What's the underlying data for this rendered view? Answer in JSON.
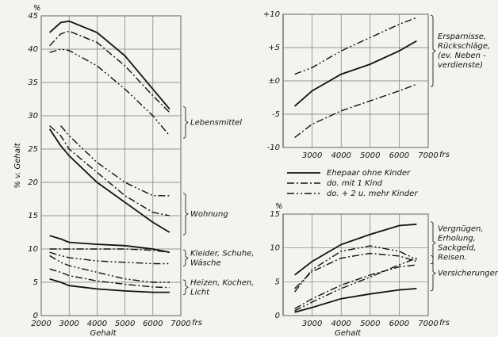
{
  "legend": [
    "Ehepaar ohne Kinder",
    "do. mit 1 Kind",
    "do. + 2 u. mehr Kinder"
  ],
  "chart_data": [
    {
      "type": "line",
      "x_label": "Gehalt",
      "y_label": "% v. Gehalt",
      "y_unit": "%",
      "x_unit": "frs",
      "grid": true,
      "color": "#111111",
      "xlim": [
        2000,
        7000
      ],
      "ylim": [
        0,
        45
      ],
      "xticks": [
        2000,
        3000,
        4000,
        5000,
        6000,
        7000
      ],
      "yticks": [
        0,
        5,
        10,
        15,
        20,
        25,
        30,
        35,
        40,
        45
      ],
      "x": [
        2300,
        2700,
        3000,
        4000,
        5000,
        6000,
        6600
      ],
      "groups": [
        {
          "label": [
            "Lebensmittel"
          ],
          "lines": [
            {
              "values": [
                42.5,
                44,
                44.2,
                42.5,
                39,
                34,
                31
              ]
            },
            {
              "values": [
                40.5,
                42.3,
                42.7,
                41,
                37.5,
                33,
                30.5
              ]
            },
            {
              "values": [
                39.5,
                40,
                39.8,
                37.5,
                34,
                30,
                27
              ]
            }
          ]
        },
        {
          "label": [
            "Wohnung"
          ],
          "lines": [
            {
              "values": [
                28,
                25.5,
                24,
                20,
                17,
                14,
                12.5
              ]
            },
            {
              "values": [
                28.5,
                27,
                25,
                21.5,
                18,
                15.5,
                15
              ]
            },
            {
              "values": [
                null,
                28.5,
                27,
                23,
                20,
                18,
                18
              ]
            }
          ]
        },
        {
          "label": [
            "Kleider, Schuhe,",
            "Wäsche"
          ],
          "lines": [
            {
              "values": [
                12,
                11.5,
                11,
                10.7,
                10.5,
                10,
                9.5
              ]
            },
            {
              "values": [
                10,
                10,
                10,
                10,
                10,
                9.8,
                9.5
              ]
            },
            {
              "values": [
                9.5,
                9,
                8.7,
                8.2,
                8,
                7.8,
                7.8
              ]
            }
          ]
        },
        {
          "label": [
            "Heizen, Kochen,",
            "Licht"
          ],
          "lines": [
            {
              "values": [
                5.5,
                5,
                4.5,
                4,
                3.7,
                3.5,
                3.5
              ]
            },
            {
              "values": [
                7,
                6.5,
                6,
                5.2,
                4.7,
                4.3,
                4.2
              ]
            },
            {
              "values": [
                9,
                8,
                7.5,
                6.5,
                5.5,
                5,
                5
              ]
            }
          ]
        }
      ]
    },
    {
      "type": "line",
      "grid": true,
      "color": "#111111",
      "x_unit": "frs",
      "xlim": [
        2000,
        7000
      ],
      "ylim": [
        -10,
        10
      ],
      "xticks": [
        3000,
        4000,
        5000,
        6000,
        7000
      ],
      "yticks": [
        {
          "value": -10,
          "label": "-10"
        },
        {
          "value": -5,
          "label": "-5"
        },
        {
          "value": 0,
          "label": "±0"
        },
        {
          "value": 5,
          "label": "+5"
        },
        {
          "value": 10,
          "label": "+10"
        }
      ],
      "x": [
        2400,
        3000,
        4000,
        5000,
        6000,
        6600
      ],
      "groups": [
        {
          "label": [
            "Ersparnisse,",
            "Rückschläge,",
            "(ev. Neben -",
            "verdienste)"
          ],
          "lines": [
            {
              "values": [
                -3.8,
                -1.5,
                1,
                2.5,
                4.5,
                6
              ]
            },
            {
              "values": [
                -8.5,
                -6.5,
                -4.5,
                -3,
                -1.5,
                -0.5
              ]
            },
            {
              "values": [
                1,
                2,
                4.5,
                6.5,
                8.5,
                9.5
              ]
            }
          ]
        }
      ]
    },
    {
      "type": "line",
      "grid": true,
      "color": "#111111",
      "x_label": "Gehalt",
      "x_unit": "frs",
      "y_unit": "%",
      "xlim": [
        2000,
        7000
      ],
      "ylim": [
        0,
        15
      ],
      "xticks": [
        3000,
        4000,
        5000,
        6000,
        7000
      ],
      "yticks": [
        0,
        5,
        10,
        15
      ],
      "x": [
        2400,
        3000,
        4000,
        5000,
        6000,
        6600
      ],
      "groups": [
        {
          "label": [
            "Vergnügen,",
            "Erholung,",
            "Sackgeld,",
            "Reisen."
          ],
          "lines": [
            {
              "values": [
                6,
                8,
                10.5,
                12,
                13.3,
                13.5
              ]
            },
            {
              "values": [
                4,
                6.5,
                8.5,
                9.2,
                8.8,
                8
              ]
            },
            {
              "values": [
                3.5,
                6.8,
                9.5,
                10.3,
                9.5,
                8.3
              ]
            }
          ]
        },
        {
          "label": [
            "Versicherungen"
          ],
          "lines": [
            {
              "values": [
                0.5,
                1.2,
                2.5,
                3.2,
                3.8,
                4
              ]
            },
            {
              "values": [
                1,
                2.5,
                4.5,
                6,
                7.2,
                7.5
              ]
            },
            {
              "values": [
                0.7,
                2,
                4,
                5.7,
                7.5,
                8.5
              ]
            }
          ]
        }
      ]
    }
  ]
}
